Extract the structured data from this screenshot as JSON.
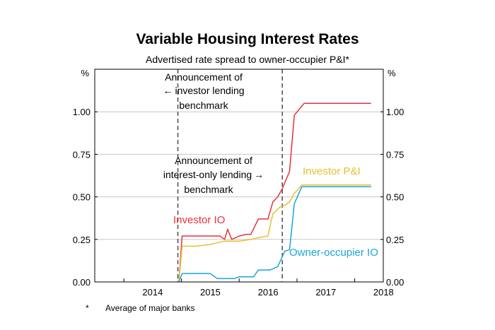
{
  "chart_data": {
    "type": "line",
    "title": "Variable Housing Interest Rates",
    "subtitle": "Advertised rate spread to owner-occupier P&I*",
    "y_unit_left": "%",
    "y_unit_right": "%",
    "ylim": [
      0,
      1.25
    ],
    "yticks": [
      "0.00",
      "0.25",
      "0.50",
      "0.75",
      "1.00"
    ],
    "ytick_values": [
      0,
      0.25,
      0.5,
      0.75,
      1.0
    ],
    "xlim": [
      "2013-07-01",
      "2018-07-01"
    ],
    "xtick_labels": [
      "2014",
      "2015",
      "2016",
      "2017",
      "2018"
    ],
    "xtick_dates": [
      "2014-01-01",
      "2015-01-01",
      "2016-01-01",
      "2017-01-01",
      "2018-01-01"
    ],
    "grid": true,
    "series": [
      {
        "name": "Investor IO",
        "color": "#e8323c",
        "points": [
          [
            "2014-12-15",
            0
          ],
          [
            "2015-01-05",
            0.27
          ],
          [
            "2015-02-01",
            0.27
          ],
          [
            "2015-04-01",
            0.27
          ],
          [
            "2015-07-01",
            0.27
          ],
          [
            "2015-09-01",
            0.27
          ],
          [
            "2015-10-01",
            0.25
          ],
          [
            "2015-10-20",
            0.31
          ],
          [
            "2015-11-15",
            0.25
          ],
          [
            "2016-01-01",
            0.27
          ],
          [
            "2016-02-15",
            0.28
          ],
          [
            "2016-03-15",
            0.28
          ],
          [
            "2016-05-01",
            0.37
          ],
          [
            "2016-07-01",
            0.37
          ],
          [
            "2016-08-01",
            0.47
          ],
          [
            "2016-09-01",
            0.5
          ],
          [
            "2016-10-01",
            0.55
          ],
          [
            "2016-11-15",
            0.65
          ],
          [
            "2016-12-15",
            0.98
          ],
          [
            "2017-02-15",
            1.05
          ],
          [
            "2018-04-15",
            1.05
          ]
        ]
      },
      {
        "name": "Investor P&I",
        "color": "#e6c12f",
        "points": [
          [
            "2014-12-15",
            0
          ],
          [
            "2015-01-05",
            0.21
          ],
          [
            "2015-04-01",
            0.21
          ],
          [
            "2015-07-01",
            0.22
          ],
          [
            "2015-10-01",
            0.24
          ],
          [
            "2016-01-01",
            0.24
          ],
          [
            "2016-03-15",
            0.25
          ],
          [
            "2016-05-01",
            0.26
          ],
          [
            "2016-07-01",
            0.27
          ],
          [
            "2016-08-01",
            0.4
          ],
          [
            "2016-09-15",
            0.44
          ],
          [
            "2016-10-15",
            0.45
          ],
          [
            "2016-11-15",
            0.47
          ],
          [
            "2016-12-15",
            0.52
          ],
          [
            "2017-02-01",
            0.57
          ],
          [
            "2018-04-15",
            0.57
          ]
        ]
      },
      {
        "name": "Owner-occupier IO",
        "color": "#1aa5d8",
        "points": [
          [
            "2014-12-15",
            0
          ],
          [
            "2015-01-05",
            0.05
          ],
          [
            "2015-04-01",
            0.05
          ],
          [
            "2015-07-01",
            0.05
          ],
          [
            "2015-08-15",
            0.02
          ],
          [
            "2015-12-01",
            0.02
          ],
          [
            "2016-01-01",
            0.03
          ],
          [
            "2016-04-01",
            0.03
          ],
          [
            "2016-05-01",
            0.07
          ],
          [
            "2016-07-15",
            0.07
          ],
          [
            "2016-09-01",
            0.09
          ],
          [
            "2016-10-15",
            0.18
          ],
          [
            "2016-11-15",
            0.19
          ],
          [
            "2016-12-15",
            0.46
          ],
          [
            "2017-02-01",
            0.56
          ],
          [
            "2018-04-15",
            0.56
          ]
        ]
      }
    ],
    "events": [
      {
        "date": "2014-12-09",
        "label_lines": [
          "Announcement of",
          "investor lending",
          "benchmark"
        ],
        "arrow": "←"
      },
      {
        "date": "2016-09-30",
        "label_lines": [
          "Announcement of",
          "interest-only lending",
          "benchmark"
        ],
        "arrow": "→"
      }
    ],
    "annotations": {
      "investor_io": "Investor IO",
      "investor_pi": "Investor P&I",
      "owner_io": "Owner-occupier IO"
    },
    "footnote": {
      "mark": "*",
      "text": "Average of major banks"
    }
  }
}
